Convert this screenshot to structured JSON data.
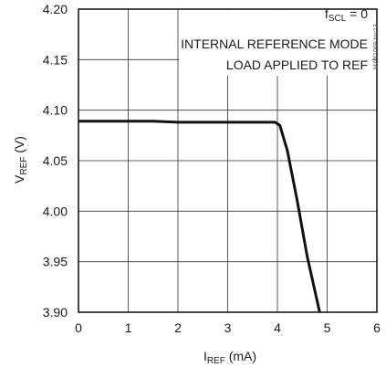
{
  "chart_data": {
    "type": "line",
    "xlabel_main": "I",
    "xlabel_sub": "REF",
    "xlabel_unit": " (mA)",
    "ylabel_main": "V",
    "ylabel_sub": "REF",
    "ylabel_unit": " (V)",
    "xlim": [
      0,
      6
    ],
    "ylim": [
      3.9,
      4.2
    ],
    "x_ticks": [
      0,
      1,
      2,
      3,
      4,
      5,
      6
    ],
    "x_tick_labels": [
      "0",
      "1",
      "2",
      "3",
      "4",
      "5",
      "6"
    ],
    "y_ticks": [
      3.9,
      3.95,
      4.0,
      4.05,
      4.1,
      4.15,
      4.2
    ],
    "y_tick_labels": [
      "3.90",
      "3.95",
      "4.00",
      "4.05",
      "4.10",
      "4.15",
      "4.20"
    ],
    "grid": true,
    "annotations": {
      "line1_main": "f",
      "line1_sub": "SCL",
      "line1_rest": " = 0",
      "line2": "INTERNAL REFERENCE MODE",
      "line3": "LOAD APPLIED TO REF"
    },
    "watermark": "MAX1069 toc13",
    "series": [
      {
        "x": [
          0,
          0.5,
          1,
          1.5,
          2,
          2.5,
          3,
          3.5,
          3.8,
          3.95,
          4.05,
          4.2,
          4.4,
          4.6,
          4.85
        ],
        "y": [
          4.089,
          4.089,
          4.089,
          4.089,
          4.088,
          4.088,
          4.088,
          4.088,
          4.088,
          4.088,
          4.085,
          4.06,
          4.01,
          3.955,
          3.9
        ]
      }
    ]
  }
}
